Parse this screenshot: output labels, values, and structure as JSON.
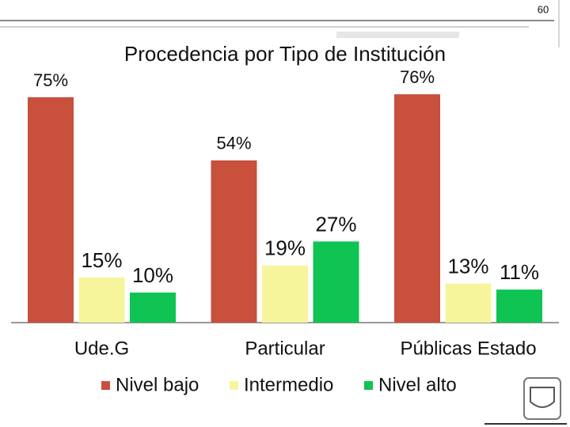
{
  "slide_number": "60",
  "chart_data": {
    "type": "bar",
    "title": "Procedencia por Tipo de Institución",
    "categories": [
      "Ude.G",
      "Particular",
      "Públicas Estado"
    ],
    "series": [
      {
        "name": "Nivel bajo",
        "color": "#c8503c",
        "values": [
          75,
          54,
          76
        ],
        "value_labels": [
          "75%",
          "54%",
          "76%"
        ]
      },
      {
        "name": "Intermedio",
        "color": "#f7f59c",
        "values": [
          15,
          19,
          13
        ],
        "value_labels": [
          "15%",
          "19%",
          "13%"
        ]
      },
      {
        "name": "Nivel alto",
        "color": "#0fc452",
        "values": [
          10,
          27,
          11
        ],
        "value_labels": [
          "10%",
          "27%",
          "11%"
        ]
      }
    ],
    "legend": "bottom"
  }
}
